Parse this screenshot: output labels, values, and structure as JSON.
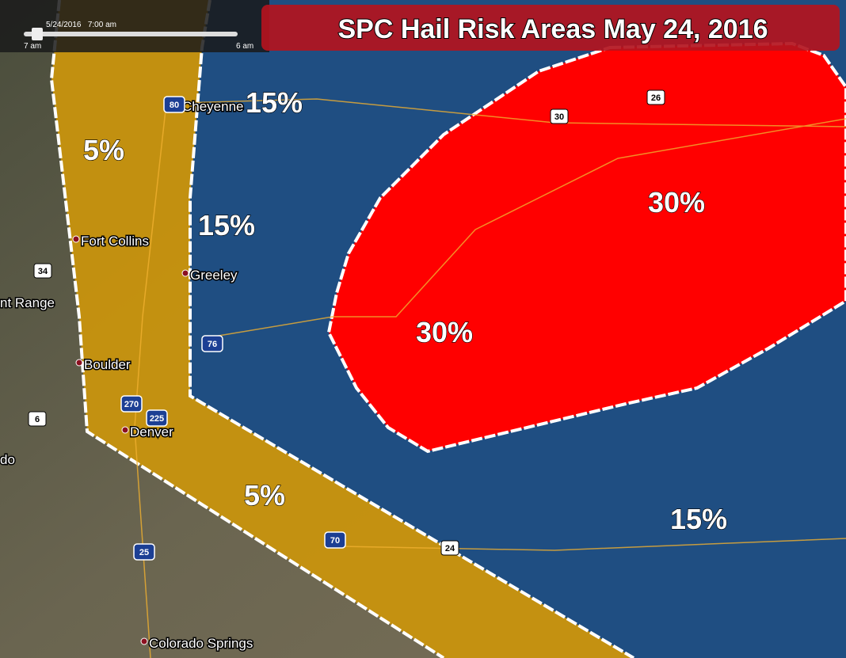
{
  "title": "SPC Hail Risk Areas May 24, 2016",
  "time_slider": {
    "date_time": "5/24/2016   7:00 am",
    "start": "7 am",
    "end": "6 am"
  },
  "risk_labels": [
    "15%",
    "5%",
    "15%",
    "30%",
    "30%",
    "5%",
    "15%"
  ],
  "cities": [
    "Cheyenne",
    "Fort Collins",
    "Greeley",
    "Boulder",
    "Denver",
    "Colorado Springs"
  ],
  "highways": [
    "80",
    "30",
    "26",
    "34",
    "76",
    "270",
    "225",
    "6",
    "25",
    "70",
    "24"
  ],
  "other_labels": [
    "nt Range",
    "do"
  ]
}
